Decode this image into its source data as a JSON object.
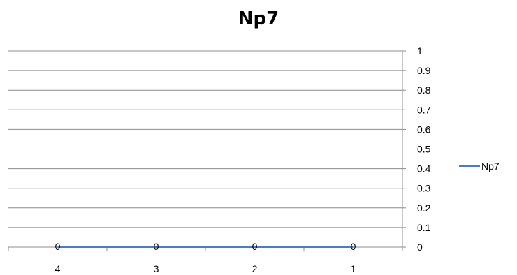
{
  "chart_data": {
    "type": "line",
    "title": "Np7",
    "categories": [
      "4",
      "3",
      "2",
      "1"
    ],
    "series": [
      {
        "name": "Np7",
        "values": [
          0,
          0,
          0,
          0
        ],
        "color": "#4a7ebb"
      }
    ],
    "data_labels": [
      "0",
      "0",
      "0",
      "0"
    ],
    "y_ticks": [
      "0",
      "0.1",
      "0.2",
      "0.3",
      "0.4",
      "0.5",
      "0.6",
      "0.7",
      "0.8",
      "0.9",
      "1"
    ],
    "ylim": [
      0,
      1
    ],
    "y_axis_side": "right",
    "grid": true,
    "legend_position": "right",
    "xlabel": "",
    "ylabel": ""
  }
}
